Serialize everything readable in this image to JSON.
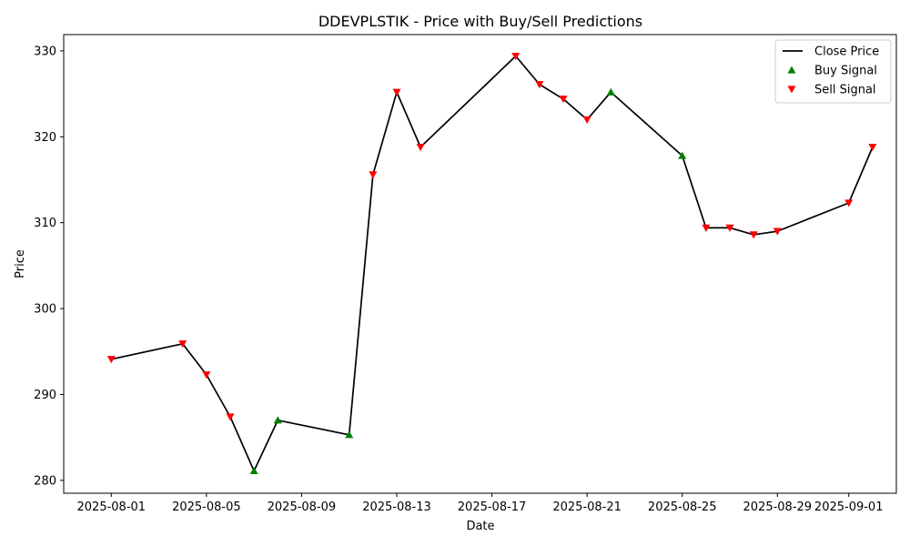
{
  "chart_data": {
    "type": "line",
    "title": "DDEVPLSTIK - Price with Buy/Sell Predictions",
    "xlabel": "Date",
    "ylabel": "Price",
    "x_ticks": [
      "2025-08-01",
      "2025-08-05",
      "2025-08-09",
      "2025-08-13",
      "2025-08-17",
      "2025-08-21",
      "2025-08-25",
      "2025-08-29",
      "2025-09-01"
    ],
    "y_ticks": [
      280,
      290,
      300,
      310,
      320,
      330
    ],
    "xlim": [
      "2025-07-30",
      "2025-09-03"
    ],
    "ylim": [
      278.5,
      331.9
    ],
    "legend_position": "top-right",
    "series": [
      {
        "name": "Close Price",
        "kind": "line",
        "color": "#000000",
        "points": [
          {
            "x": "2025-08-01",
            "y": 294.1
          },
          {
            "x": "2025-08-04",
            "y": 295.9
          },
          {
            "x": "2025-08-05",
            "y": 292.3
          },
          {
            "x": "2025-08-06",
            "y": 287.4
          },
          {
            "x": "2025-08-07",
            "y": 281.1
          },
          {
            "x": "2025-08-08",
            "y": 287.0
          },
          {
            "x": "2025-08-11",
            "y": 285.3
          },
          {
            "x": "2025-08-12",
            "y": 315.6
          },
          {
            "x": "2025-08-13",
            "y": 325.2
          },
          {
            "x": "2025-08-14",
            "y": 318.8
          },
          {
            "x": "2025-08-18",
            "y": 329.4
          },
          {
            "x": "2025-08-19",
            "y": 326.1
          },
          {
            "x": "2025-08-20",
            "y": 324.4
          },
          {
            "x": "2025-08-21",
            "y": 322.0
          },
          {
            "x": "2025-08-22",
            "y": 325.2
          },
          {
            "x": "2025-08-25",
            "y": 317.8
          },
          {
            "x": "2025-08-26",
            "y": 309.4
          },
          {
            "x": "2025-08-27",
            "y": 309.4
          },
          {
            "x": "2025-08-28",
            "y": 308.6
          },
          {
            "x": "2025-08-29",
            "y": 309.0
          },
          {
            "x": "2025-09-01",
            "y": 312.3
          },
          {
            "x": "2025-09-02",
            "y": 318.8
          }
        ]
      },
      {
        "name": "Buy Signal",
        "kind": "marker-up",
        "color": "#008000",
        "points": [
          {
            "x": "2025-08-07",
            "y": 281.1
          },
          {
            "x": "2025-08-08",
            "y": 287.0
          },
          {
            "x": "2025-08-11",
            "y": 285.3
          },
          {
            "x": "2025-08-22",
            "y": 325.2
          },
          {
            "x": "2025-08-25",
            "y": 317.8
          }
        ]
      },
      {
        "name": "Sell Signal",
        "kind": "marker-down",
        "color": "#ff0000",
        "points": [
          {
            "x": "2025-08-01",
            "y": 294.1
          },
          {
            "x": "2025-08-04",
            "y": 295.9
          },
          {
            "x": "2025-08-05",
            "y": 292.3
          },
          {
            "x": "2025-08-06",
            "y": 287.4
          },
          {
            "x": "2025-08-12",
            "y": 315.6
          },
          {
            "x": "2025-08-13",
            "y": 325.2
          },
          {
            "x": "2025-08-14",
            "y": 318.8
          },
          {
            "x": "2025-08-18",
            "y": 329.4
          },
          {
            "x": "2025-08-19",
            "y": 326.1
          },
          {
            "x": "2025-08-20",
            "y": 324.4
          },
          {
            "x": "2025-08-21",
            "y": 322.0
          },
          {
            "x": "2025-08-26",
            "y": 309.4
          },
          {
            "x": "2025-08-27",
            "y": 309.4
          },
          {
            "x": "2025-08-28",
            "y": 308.6
          },
          {
            "x": "2025-08-29",
            "y": 309.0
          },
          {
            "x": "2025-09-01",
            "y": 312.3
          },
          {
            "x": "2025-09-02",
            "y": 318.8
          }
        ]
      }
    ]
  }
}
